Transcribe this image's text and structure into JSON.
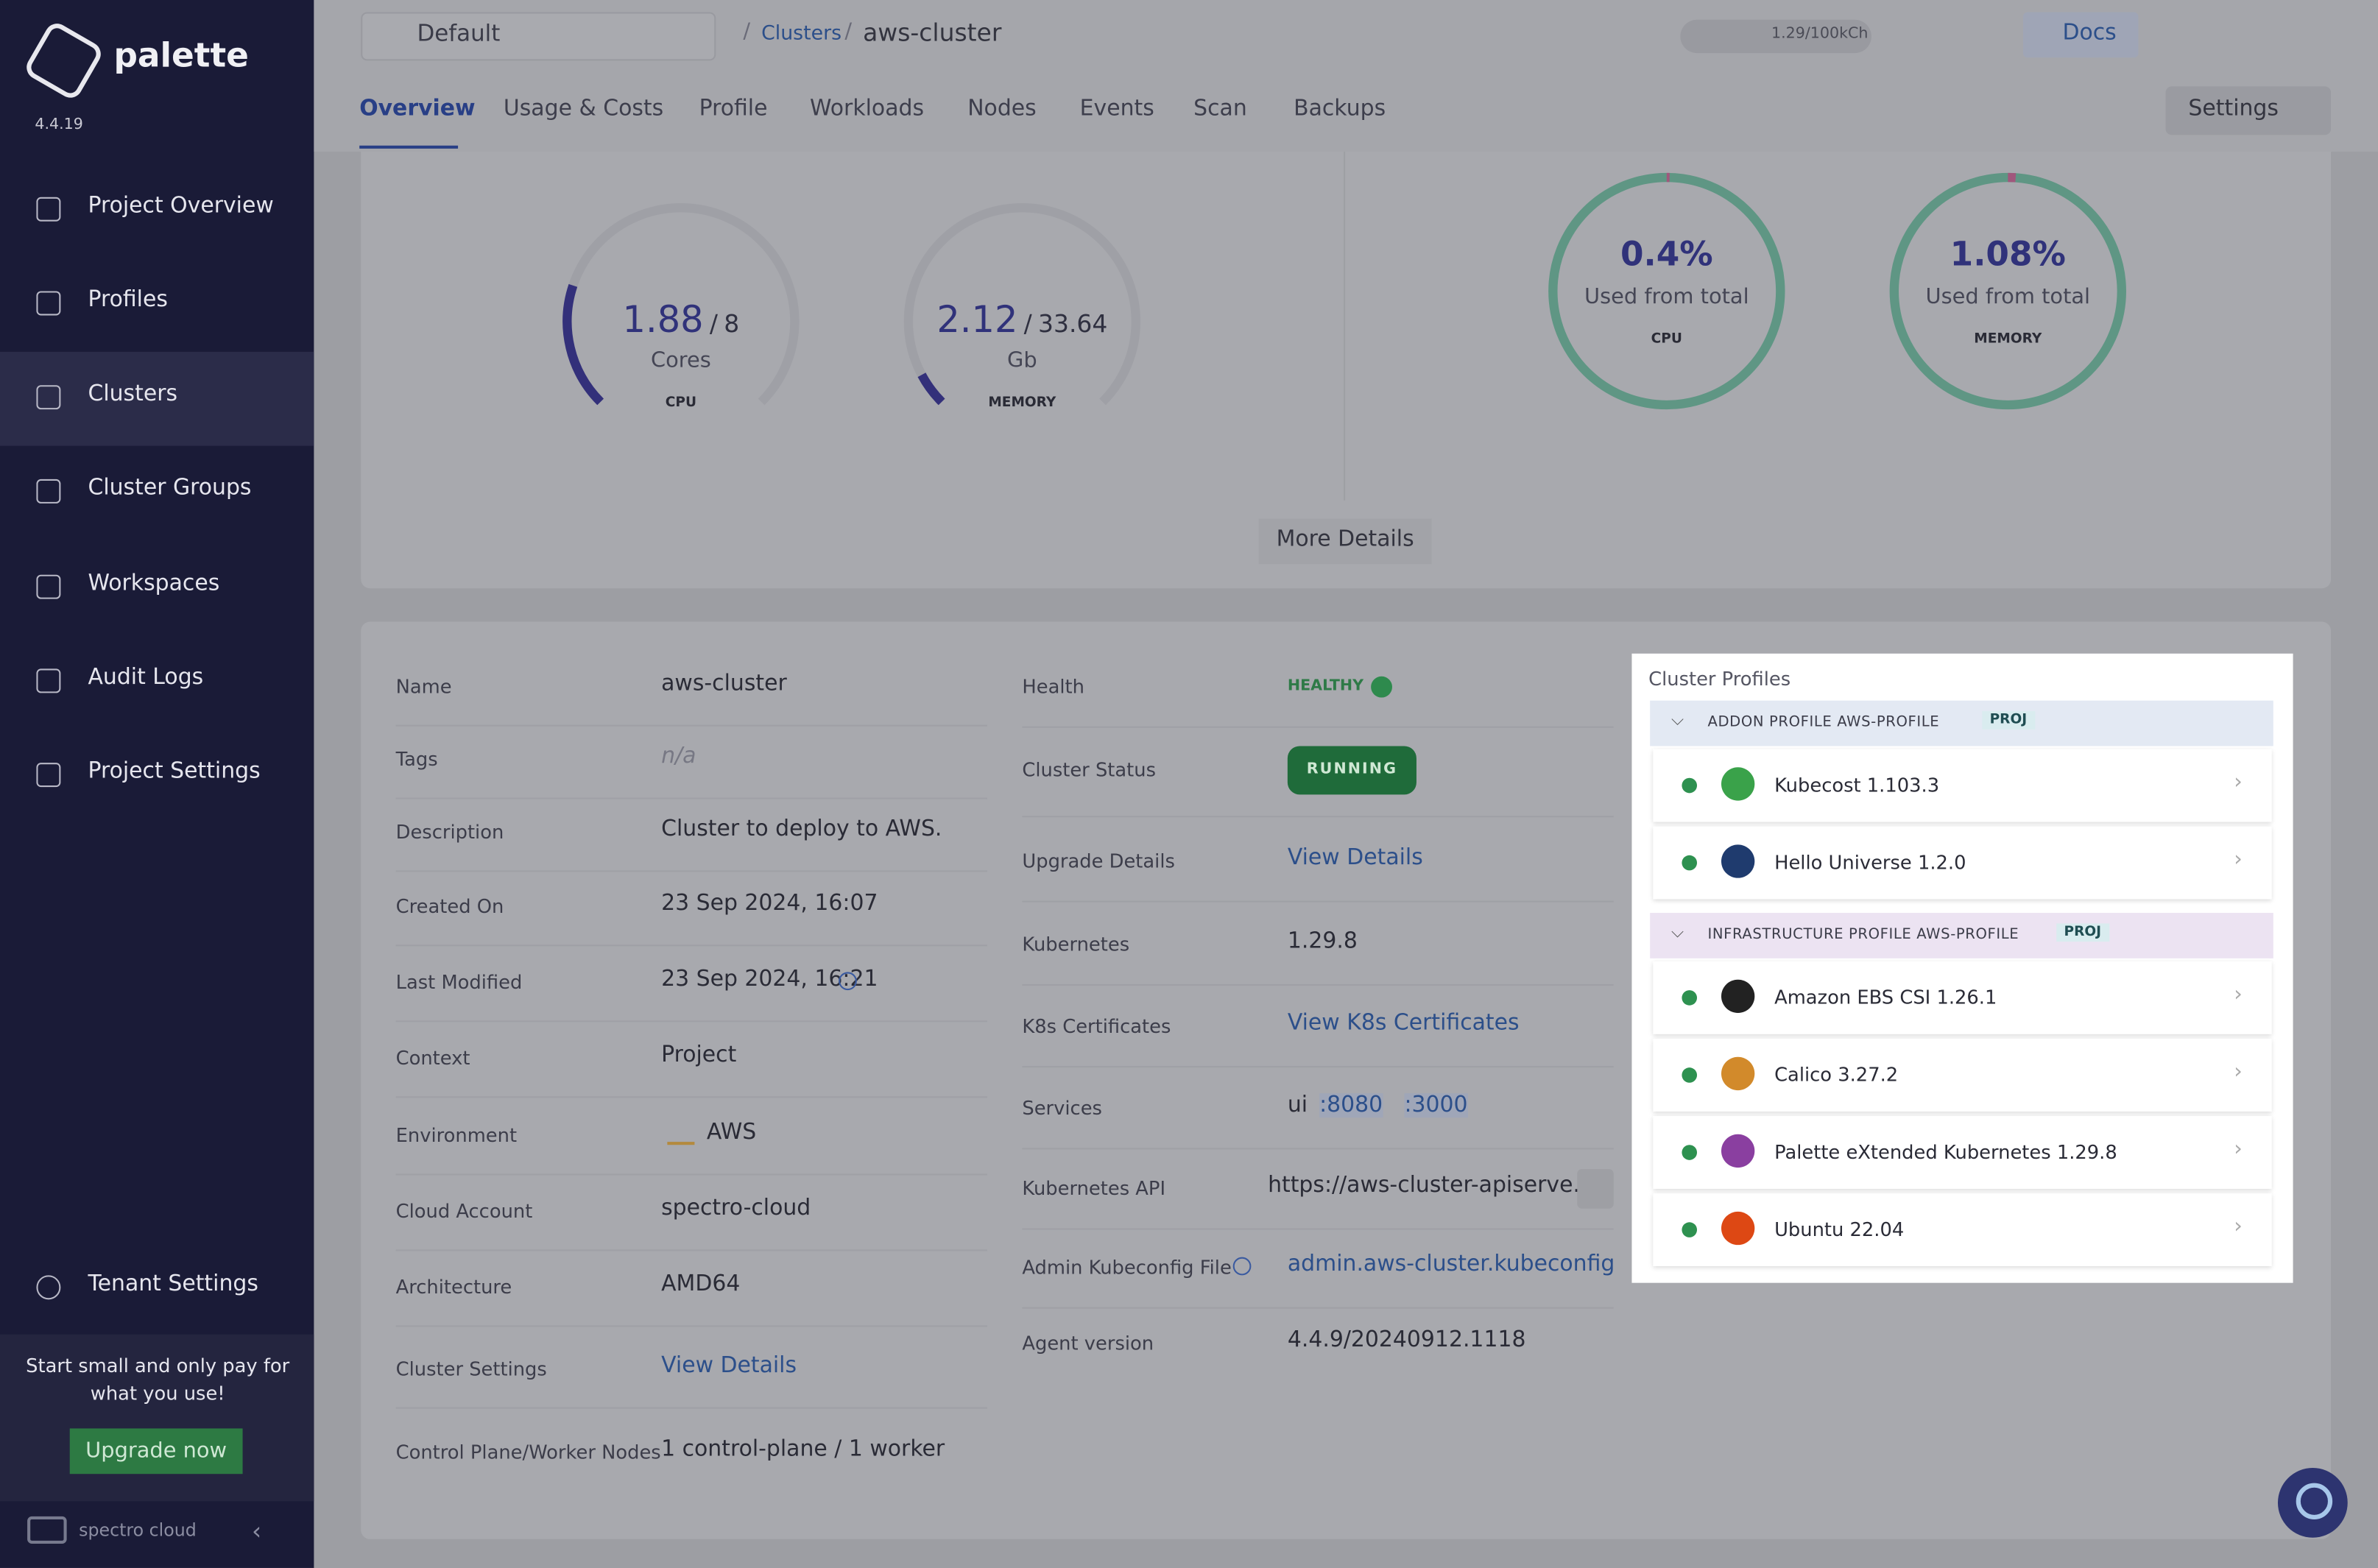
{
  "sidebar": {
    "brand": "palette",
    "version": "4.4.19",
    "nav": [
      "Project Overview",
      "Profiles",
      "Clusters",
      "Cluster Groups",
      "Workspaces",
      "Audit Logs",
      "Project Settings"
    ],
    "tenant": "Tenant Settings",
    "promo": "Start small and only pay for what you use!",
    "upgrade": "Upgrade now",
    "footer": "spectro cloud"
  },
  "topbar": {
    "project": "Default",
    "breadcrumb": [
      "Clusters",
      "aws-cluster"
    ],
    "usage": "1.29/100kCh",
    "docs": "Docs"
  },
  "tabs": [
    "Overview",
    "Usage & Costs",
    "Profile",
    "Workloads",
    "Nodes",
    "Events",
    "Scan",
    "Backups"
  ],
  "settings": "Settings",
  "gauges": [
    {
      "used": 1.88,
      "separator": "/",
      "total": 8,
      "unit": "Cores",
      "label": "CPU"
    },
    {
      "used": 2.12,
      "separator": "/",
      "total": 33.64,
      "unit": "Gb",
      "label": "MEMORY"
    }
  ],
  "rings": [
    {
      "percent": 0.4,
      "percent_label": "0.4%",
      "caption": "Used from total",
      "label": "CPU"
    },
    {
      "percent": 1.08,
      "percent_label": "1.08%",
      "caption": "Used from total",
      "label": "MEMORY"
    }
  ],
  "more_details": "More Details",
  "details_left": [
    {
      "label": "Name",
      "value": "aws-cluster"
    },
    {
      "label": "Tags",
      "value": "n/a"
    },
    {
      "label": "Description",
      "value": "Cluster to deploy to AWS."
    },
    {
      "label": "Created On",
      "value": "23 Sep 2024, 16:07"
    },
    {
      "label": "Last Modified",
      "value": "23 Sep 2024, 16:21"
    },
    {
      "label": "Context",
      "value": "Project"
    },
    {
      "label": "Environment",
      "value": "AWS"
    },
    {
      "label": "Cloud Account",
      "value": "spectro-cloud"
    },
    {
      "label": "Architecture",
      "value": "AMD64"
    },
    {
      "label": "Cluster Settings",
      "value": "View Details"
    },
    {
      "label": "Control Plane/Worker Nodes",
      "value": "1 control-plane / 1 worker"
    }
  ],
  "details_mid": [
    {
      "label": "Health",
      "value": "HEALTHY"
    },
    {
      "label": "Cluster Status",
      "value": "RUNNING"
    },
    {
      "label": "Upgrade Details",
      "value": "View Details"
    },
    {
      "label": "Kubernetes",
      "value": "1.29.8"
    },
    {
      "label": "K8s Certificates",
      "value": "View K8s Certificates"
    },
    {
      "label": "Services",
      "value": "ui",
      "ports": [
        ":8080",
        ":3000"
      ]
    },
    {
      "label": "Kubernetes API",
      "value": "https://aws-cluster-apiserve..."
    },
    {
      "label": "Admin Kubeconfig File",
      "value": "admin.aws-cluster.kubeconfig"
    },
    {
      "label": "Agent version",
      "value": "4.4.9/20240912.1118"
    }
  ],
  "cluster_profiles": {
    "title": "Cluster Profiles",
    "groups": [
      {
        "title": "ADDON PROFILE AWS-PROFILE",
        "tag": "PROJ",
        "packs": [
          "Kubecost 1.103.3",
          "Hello Universe 1.2.0"
        ]
      },
      {
        "title": "INFRASTRUCTURE PROFILE AWS-PROFILE",
        "tag": "PROJ",
        "packs": [
          "Amazon EBS CSI 1.26.1",
          "Calico 3.27.2",
          "Palette eXtended Kubernetes 1.29.8",
          "Ubuntu 22.04"
        ]
      }
    ]
  }
}
